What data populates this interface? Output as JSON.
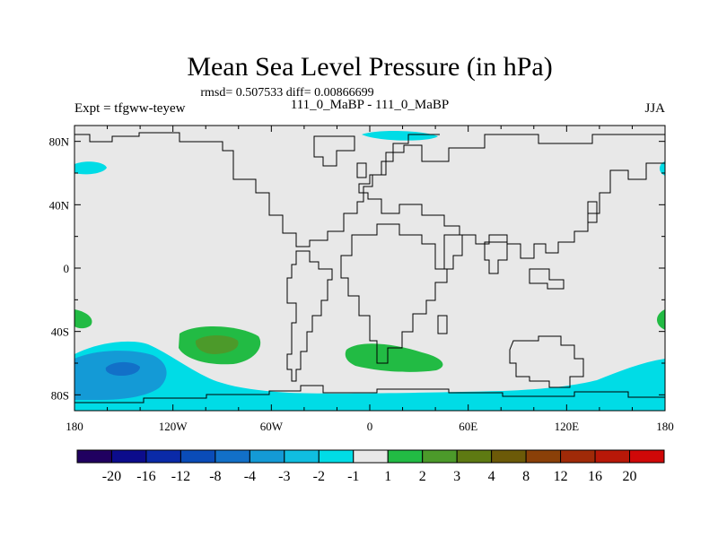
{
  "chart_data": {
    "type": "heatmap",
    "title": "Mean Sea Level Pressure (in hPa)",
    "subtitle": "rmsd= 0.507533 diff= 0.00866699",
    "center_label": "111_0_MaBP - 111_0_MaBP",
    "left_label": "Expt = tfgww-teyew",
    "right_label": "JJA",
    "x_ticks": [
      "180",
      "120W",
      "60W",
      "0",
      "60E",
      "120E",
      "180"
    ],
    "x_tick_values": [
      -180,
      -120,
      -60,
      0,
      60,
      120,
      180
    ],
    "y_ticks": [
      "80N",
      "40N",
      "0",
      "40S",
      "80S"
    ],
    "y_tick_values": [
      80,
      40,
      0,
      -40,
      -80
    ],
    "xlim": [
      -180,
      180
    ],
    "ylim": [
      -90,
      90
    ],
    "colorbar": {
      "labels": [
        "-20",
        "-16",
        "-12",
        "-8",
        "-4",
        "-3",
        "-2",
        "-1",
        "1",
        "2",
        "3",
        "4",
        "8",
        "12",
        "16",
        "20"
      ],
      "colors": [
        "#200060",
        "#0c0c8c",
        "#0a2aa8",
        "#0a4cb8",
        "#1270c8",
        "#149ad6",
        "#10bee0",
        "#00dce6",
        "#e8e8e8",
        "#22bb44",
        "#4c9a2a",
        "#5e7a12",
        "#6c5a08",
        "#8a4008",
        "#a02a08",
        "#b81808",
        "#d00808"
      ]
    },
    "land_fill": "#e8e8e8",
    "anomaly_regions": [
      {
        "name": "arctic-low",
        "level": "-1",
        "color": "#00dce6"
      },
      {
        "name": "north-pacific-low-west",
        "level": "-1",
        "color": "#00dce6"
      },
      {
        "name": "north-pacific-low-east",
        "level": "-1",
        "color": "#00dce6"
      },
      {
        "name": "southern-ocean-low-band",
        "level": "-1",
        "color": "#00dce6"
      },
      {
        "name": "south-pacific-low-core",
        "level": "-3",
        "color": "#149ad6"
      },
      {
        "name": "south-pacific-low-center",
        "level": "-4",
        "color": "#1270c8"
      },
      {
        "name": "south-pacific-high",
        "level": "2",
        "color": "#22bb44"
      },
      {
        "name": "south-pacific-high-core",
        "level": "3",
        "color": "#4c9a2a"
      },
      {
        "name": "south-atlantic-high",
        "level": "2",
        "color": "#22bb44"
      },
      {
        "name": "southwest-pacific-high",
        "level": "2",
        "color": "#22bb44"
      }
    ]
  }
}
